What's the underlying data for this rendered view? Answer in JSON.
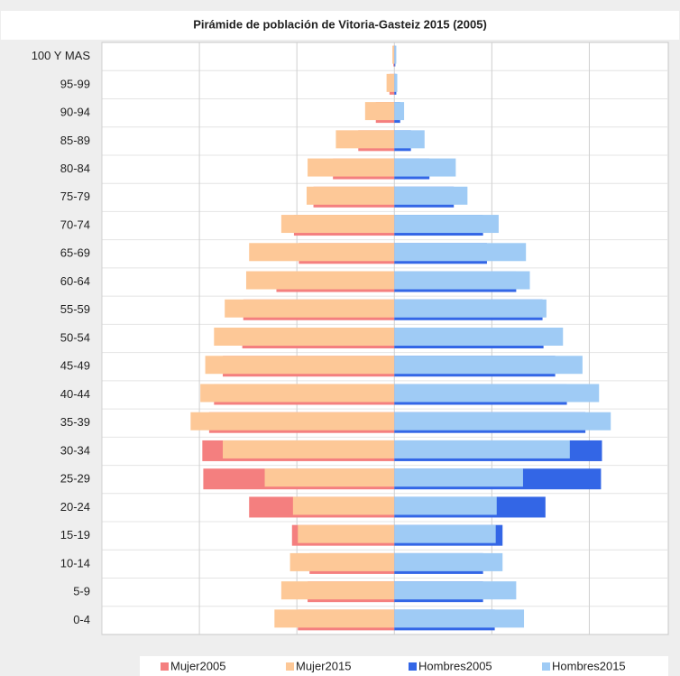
{
  "chart_data": {
    "type": "pyramid",
    "title": "Pirámide de población de Vitoria-Gasteiz 2015 (2005)",
    "categories": [
      "100 Y MAS",
      "95-99",
      "90-94",
      "85-89",
      "80-84",
      "75-79",
      "70-74",
      "65-69",
      "60-64",
      "55-59",
      "50-54",
      "45-49",
      "40-44",
      "35-39",
      "30-34",
      "25-29",
      "20-24",
      "15-19",
      "10-14",
      "5-9",
      "0-4"
    ],
    "series": [
      {
        "name": "Mujer2005",
        "color": "#f47f7f",
        "values": [
          -1,
          -5,
          -19,
          -37,
          -63,
          -83,
          -103,
          -98,
          -121,
          -155,
          -156,
          -176,
          -185,
          -190,
          -197,
          -196,
          -149,
          -105,
          -87,
          -89,
          -99
        ]
      },
      {
        "name": "Mujer2015",
        "color": "#fdc897",
        "values": [
          -2,
          -8,
          -30,
          -60,
          -89,
          -90,
          -116,
          -149,
          -152,
          -174,
          -185,
          -194,
          -199,
          -209,
          -176,
          -133,
          -104,
          -99,
          -107,
          -116,
          -123
        ]
      },
      {
        "name": "Hombres2005",
        "color": "#3366e6",
        "values": [
          1,
          2,
          6,
          17,
          36,
          61,
          91,
          95,
          125,
          152,
          153,
          165,
          177,
          196,
          213,
          212,
          155,
          111,
          91,
          91,
          103
        ]
      },
      {
        "name": "Hombres2015",
        "color": "#9fcbf5",
        "values": [
          2,
          3,
          10,
          31,
          63,
          75,
          107,
          135,
          139,
          156,
          173,
          193,
          210,
          222,
          180,
          132,
          105,
          104,
          111,
          125,
          133
        ]
      }
    ],
    "xlim": [
      -300,
      281
    ],
    "xticks": [
      -300,
      -200,
      -100,
      0,
      100,
      200
    ],
    "grid": true
  }
}
